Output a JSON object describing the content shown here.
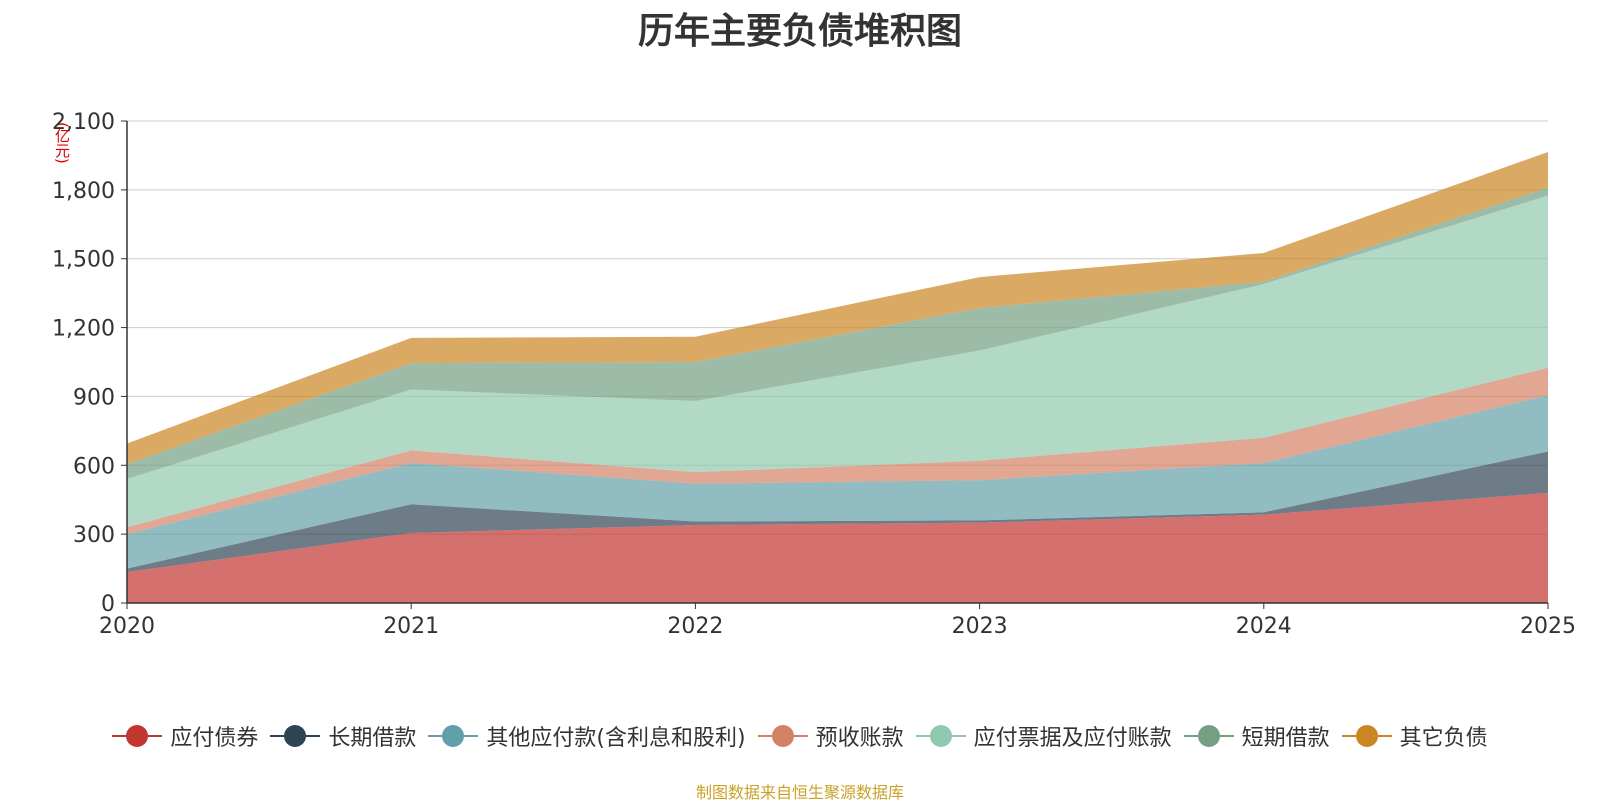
{
  "chart_data": {
    "type": "area",
    "stacked": true,
    "title": "历年主要负债堆积图",
    "unit_label": "(亿元)",
    "x": [
      "2020",
      "2021",
      "2022",
      "2023",
      "2024",
      "2025"
    ],
    "ylim": [
      0,
      2100
    ],
    "yticks": [
      "0",
      "300",
      "600",
      "900",
      "1,200",
      "1,500",
      "1,800",
      "2,100"
    ],
    "grid": true,
    "legend_position": "bottom",
    "series": [
      {
        "name": "应付债券",
        "color": "#c23531",
        "values": [
          135,
          305,
          340,
          350,
          385,
          480
        ]
      },
      {
        "name": "长期借款",
        "color": "#2f4554",
        "values": [
          15,
          125,
          15,
          10,
          10,
          180
        ]
      },
      {
        "name": "其他应付款(含利息和股利)",
        "color": "#61a0a8",
        "values": [
          150,
          180,
          165,
          175,
          215,
          245
        ]
      },
      {
        "name": "预收账款",
        "color": "#d48265",
        "values": [
          30,
          55,
          50,
          85,
          110,
          120
        ]
      },
      {
        "name": "应付票据及应付账款",
        "color": "#91c7ae",
        "values": [
          210,
          265,
          310,
          480,
          670,
          750
        ]
      },
      {
        "name": "短期借款",
        "color": "#749f83",
        "values": [
          65,
          115,
          170,
          185,
          10,
          35
        ]
      },
      {
        "name": "其它负债",
        "color": "#ca8622",
        "values": [
          90,
          110,
          110,
          135,
          125,
          155
        ]
      }
    ],
    "source": "制图数据来自恒生聚源数据库"
  }
}
